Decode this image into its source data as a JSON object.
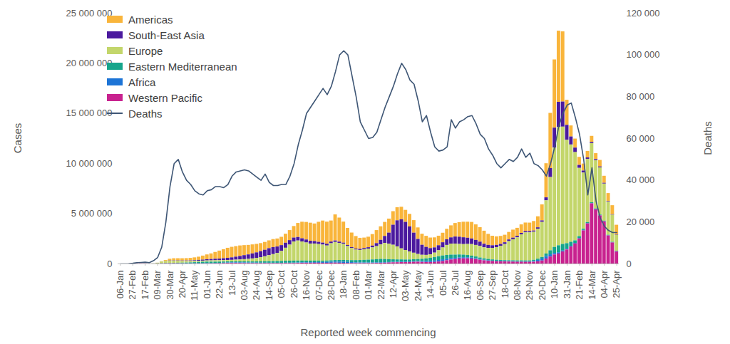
{
  "chart_data": {
    "type": "bar",
    "stacked": true,
    "legend": "top-left",
    "grid": false,
    "x_label": "Reported week commencing",
    "y_label": "Cases",
    "y2_label": "Deaths",
    "categories": [
      "06-Jan",
      null,
      null,
      "27-Feb",
      null,
      null,
      "17-Feb",
      null,
      null,
      "09-Mar",
      null,
      null,
      "30-Mar",
      null,
      null,
      "20-Apr",
      null,
      null,
      "11-May",
      null,
      null,
      "01-Jun",
      null,
      null,
      "22-Jun",
      null,
      null,
      "13-Jul",
      null,
      null,
      "03-Aug",
      null,
      null,
      "24-Aug",
      null,
      null,
      "14-Sep",
      null,
      null,
      "05-Oct",
      null,
      null,
      "26-Oct",
      null,
      null,
      "16-Nov",
      null,
      null,
      "07-Dec",
      null,
      null,
      "28-Dec",
      null,
      null,
      "18-Jan",
      null,
      null,
      "08-Feb",
      null,
      null,
      "01-Mar",
      null,
      null,
      "22-Mar",
      null,
      null,
      "12-Apr",
      null,
      null,
      "03-May",
      null,
      null,
      "24-May",
      null,
      null,
      "14-Jun",
      null,
      null,
      "05-Jul",
      null,
      null,
      "26-Jul",
      null,
      null,
      "16-Aug",
      null,
      null,
      "06-Sep",
      null,
      null,
      "27-Sep",
      null,
      null,
      "18-Oct",
      null,
      null,
      "08-Nov",
      null,
      null,
      "29-Nov",
      null,
      null,
      "20-Dec",
      null,
      null,
      "10-Jan",
      null,
      null,
      "31-Jan",
      null,
      null,
      "21-Feb",
      null,
      null,
      "14-Mar",
      null,
      null,
      "04-Apr",
      null,
      null,
      "25-Apr"
    ],
    "ylim": [
      0,
      25000000
    ],
    "yticks": [
      0,
      {
        "value": 5000000,
        "label": "5 000 000"
      },
      {
        "value": 10000000,
        "label": "10 000 000"
      },
      {
        "value": 15000000,
        "label": "15 000 000"
      },
      {
        "value": 20000000,
        "label": "20 000 000"
      },
      {
        "value": 25000000,
        "label": "25 000 000"
      }
    ],
    "y2lim": [
      0,
      120000
    ],
    "y2ticks": [
      0,
      {
        "value": 20000,
        "label": "20 000"
      },
      {
        "value": 40000,
        "label": "40 000"
      },
      {
        "value": 60000,
        "label": "60 000"
      },
      {
        "value": 80000,
        "label": "80 000"
      },
      {
        "value": 100000,
        "label": "100 000"
      },
      {
        "value": 120000,
        "label": "120 000"
      }
    ],
    "series": [
      {
        "name": "Americas",
        "type": "bar",
        "color": "#F9B53B",
        "values": [
          0,
          0,
          0,
          0,
          0,
          0,
          0,
          0,
          1000,
          5000,
          30000,
          90000,
          170000,
          210000,
          220000,
          220000,
          230000,
          250000,
          280000,
          320000,
          400000,
          480000,
          560000,
          680000,
          800000,
          900000,
          1000000,
          1050000,
          1050000,
          1050000,
          1000000,
          950000,
          900000,
          850000,
          800000,
          780000,
          780000,
          800000,
          800000,
          830000,
          900000,
          1000000,
          1150000,
          1400000,
          1650000,
          1750000,
          1800000,
          1750000,
          2000000,
          2200000,
          2200000,
          2100000,
          2600000,
          2400000,
          2100000,
          1700000,
          1450000,
          1250000,
          1100000,
          1050000,
          1050000,
          1150000,
          1300000,
          1350000,
          1400000,
          1400000,
          1350000,
          1300000,
          1250000,
          1200000,
          1250000,
          1250000,
          1150000,
          1100000,
          1100000,
          1050000,
          1000000,
          950000,
          950000,
          1050000,
          1200000,
          1350000,
          1450000,
          1550000,
          1600000,
          1650000,
          1550000,
          1450000,
          1300000,
          1100000,
          950000,
          850000,
          800000,
          750000,
          750000,
          800000,
          800000,
          850000,
          850000,
          850000,
          950000,
          1100000,
          1600000,
          3400000,
          5500000,
          6800000,
          7100000,
          7000000,
          2500000,
          1100000,
          900000,
          800000,
          700000,
          650000,
          600000,
          600000,
          650000,
          700000,
          800000,
          900000,
          950000
        ]
      },
      {
        "name": "South-East Asia",
        "type": "bar",
        "color": "#4B1A9E",
        "values": [
          0,
          0,
          0,
          0,
          0,
          0,
          0,
          0,
          0,
          2000,
          5000,
          10000,
          20000,
          25000,
          30000,
          40000,
          50000,
          60000,
          70000,
          85000,
          100000,
          120000,
          135000,
          150000,
          160000,
          190000,
          220000,
          250000,
          300000,
          350000,
          400000,
          450000,
          500000,
          550000,
          600000,
          650000,
          700000,
          700000,
          650000,
          580000,
          500000,
          450000,
          400000,
          350000,
          320000,
          300000,
          280000,
          250000,
          220000,
          200000,
          180000,
          170000,
          150000,
          130000,
          120000,
          110000,
          100000,
          100000,
          110000,
          120000,
          140000,
          180000,
          300000,
          450000,
          700000,
          1100000,
          2000000,
          2600000,
          2900000,
          2800000,
          2500000,
          2000000,
          1500000,
          1000000,
          800000,
          620000,
          520000,
          500000,
          520000,
          560000,
          620000,
          700000,
          720000,
          680000,
          620000,
          560000,
          500000,
          430000,
          360000,
          300000,
          260000,
          230000,
          200000,
          180000,
          170000,
          160000,
          150000,
          140000,
          130000,
          120000,
          120000,
          130000,
          150000,
          300000,
          900000,
          2000000,
          2500000,
          2500000,
          1500000,
          800000,
          450000,
          300000,
          200000,
          150000,
          120000,
          110000,
          100000,
          80000,
          60000,
          50000,
          50000
        ]
      },
      {
        "name": "Europe",
        "type": "bar",
        "color": "#C3D66B",
        "values": [
          0,
          0,
          0,
          0,
          0,
          0,
          0,
          1000,
          10000,
          60000,
          160000,
          200000,
          220000,
          220000,
          200000,
          180000,
          160000,
          140000,
          130000,
          120000,
          120000,
          120000,
          130000,
          140000,
          140000,
          140000,
          140000,
          150000,
          170000,
          190000,
          220000,
          250000,
          300000,
          350000,
          420000,
          500000,
          600000,
          700000,
          800000,
          1000000,
          1300000,
          1600000,
          1900000,
          2000000,
          1900000,
          1800000,
          1700000,
          1700000,
          1650000,
          1600000,
          1500000,
          1700000,
          1800000,
          1700000,
          1600000,
          1400000,
          1200000,
          1050000,
          1000000,
          1050000,
          1100000,
          1200000,
          1300000,
          1450000,
          1600000,
          1550000,
          1450000,
          1300000,
          1100000,
          950000,
          800000,
          650000,
          500000,
          400000,
          350000,
          350000,
          450000,
          600000,
          800000,
          1000000,
          1100000,
          1100000,
          1050000,
          1050000,
          1100000,
          1150000,
          1150000,
          1150000,
          1100000,
          1100000,
          1150000,
          1250000,
          1400000,
          1600000,
          1900000,
          2100000,
          2300000,
          2600000,
          2800000,
          2800000,
          2800000,
          3000000,
          3500000,
          5300000,
          7300000,
          9900000,
          11800000,
          11700000,
          10300000,
          9700000,
          8800000,
          6800000,
          5600000,
          6300000,
          5900000,
          4800000,
          4700000,
          3700000,
          3300000,
          2700000,
          1600000
        ]
      },
      {
        "name": "Eastern Mediterranean",
        "type": "bar",
        "color": "#16A58B",
        "values": [
          0,
          0,
          0,
          0,
          0,
          0,
          0,
          1000,
          3000,
          8000,
          20000,
          30000,
          35000,
          40000,
          50000,
          60000,
          75000,
          90000,
          110000,
          130000,
          140000,
          150000,
          140000,
          130000,
          120000,
          110000,
          105000,
          100000,
          95000,
          95000,
          100000,
          105000,
          110000,
          120000,
          130000,
          140000,
          150000,
          160000,
          170000,
          180000,
          190000,
          200000,
          200000,
          190000,
          180000,
          170000,
          160000,
          150000,
          140000,
          130000,
          130000,
          140000,
          150000,
          160000,
          170000,
          180000,
          200000,
          220000,
          240000,
          260000,
          280000,
          300000,
          320000,
          340000,
          320000,
          280000,
          250000,
          230000,
          220000,
          210000,
          200000,
          200000,
          210000,
          230000,
          260000,
          300000,
          340000,
          370000,
          380000,
          370000,
          350000,
          320000,
          290000,
          260000,
          230000,
          200000,
          180000,
          160000,
          140000,
          130000,
          120000,
          110000,
          100000,
          100000,
          100000,
          100000,
          100000,
          100000,
          100000,
          100000,
          110000,
          120000,
          150000,
          250000,
          400000,
          600000,
          700000,
          650000,
          550000,
          400000,
          250000,
          180000,
          120000,
          90000,
          70000,
          60000,
          50000,
          40000,
          35000,
          30000,
          25000
        ]
      },
      {
        "name": "Africa",
        "type": "bar",
        "color": "#1D74D6",
        "values": [
          0,
          0,
          0,
          0,
          0,
          0,
          0,
          0,
          0,
          1000,
          2000,
          3000,
          5000,
          6000,
          8000,
          10000,
          12000,
          14000,
          16000,
          18000,
          20000,
          25000,
          30000,
          35000,
          40000,
          47000,
          53000,
          60000,
          65000,
          68000,
          70000,
          63000,
          57000,
          50000,
          47000,
          43000,
          40000,
          38000,
          36000,
          35000,
          37000,
          38000,
          40000,
          43000,
          47000,
          50000,
          57000,
          63000,
          70000,
          80000,
          90000,
          100000,
          107000,
          113000,
          120000,
          107000,
          93000,
          80000,
          73000,
          67000,
          60000,
          57000,
          53000,
          50000,
          50000,
          50000,
          50000,
          50000,
          50000,
          50000,
          53000,
          57000,
          60000,
          80000,
          100000,
          120000,
          137000,
          153000,
          170000,
          153000,
          137000,
          120000,
          113000,
          107000,
          100000,
          87000,
          73000,
          60000,
          53000,
          47000,
          40000,
          37000,
          33000,
          30000,
          30000,
          30000,
          30000,
          33000,
          37000,
          40000,
          80000,
          140000,
          200000,
          250000,
          220000,
          150000,
          120000,
          100000,
          80000,
          70000,
          60000,
          55000,
          50000,
          40000,
          40000,
          35000,
          30000,
          30000,
          30000,
          35000,
          40000
        ]
      },
      {
        "name": "Western Pacific",
        "type": "bar",
        "color": "#C8228F",
        "values": [
          0,
          0,
          1000,
          15000,
          20000,
          20000,
          15000,
          5000,
          5000,
          8000,
          15000,
          20000,
          25000,
          25000,
          20000,
          15000,
          10000,
          8000,
          8000,
          10000,
          10000,
          12000,
          15000,
          20000,
          30000,
          40000,
          50000,
          55000,
          55000,
          50000,
          45000,
          40000,
          40000,
          40000,
          40000,
          40000,
          40000,
          40000,
          40000,
          40000,
          45000,
          45000,
          50000,
          60000,
          70000,
          75000,
          75000,
          80000,
          80000,
          75000,
          75000,
          80000,
          90000,
          80000,
          70000,
          55000,
          45000,
          40000,
          40000,
          40000,
          45000,
          50000,
          60000,
          70000,
          80000,
          100000,
          120000,
          130000,
          140000,
          140000,
          150000,
          170000,
          180000,
          160000,
          150000,
          150000,
          160000,
          200000,
          250000,
          330000,
          400000,
          450000,
          500000,
          520000,
          520000,
          500000,
          450000,
          380000,
          320000,
          280000,
          250000,
          230000,
          220000,
          210000,
          200000,
          190000,
          180000,
          180000,
          170000,
          170000,
          180000,
          220000,
          300000,
          500000,
          700000,
          900000,
          1000000,
          1200000,
          1400000,
          1700000,
          2000000,
          2500000,
          3300000,
          4000000,
          6000000,
          5400000,
          4800000,
          4200000,
          2800000,
          2100000,
          1200000
        ]
      },
      {
        "name": "Deaths",
        "type": "line",
        "axis": "y2",
        "color": "#3E5675",
        "values": [
          0,
          10,
          100,
          300,
          600,
          700,
          800,
          600,
          1500,
          3000,
          8000,
          20000,
          37000,
          48000,
          50000,
          44000,
          40000,
          38000,
          35000,
          33500,
          33000,
          35000,
          35500,
          37000,
          37000,
          36500,
          38000,
          42000,
          44000,
          44500,
          45000,
          44500,
          43000,
          41500,
          40000,
          43000,
          39000,
          37500,
          37500,
          38000,
          38000,
          42000,
          48000,
          57000,
          64000,
          72000,
          75000,
          78000,
          81000,
          84000,
          81000,
          85000,
          92000,
          100000,
          102000,
          100000,
          90000,
          80000,
          68000,
          64000,
          60000,
          60500,
          63000,
          69000,
          75000,
          80000,
          85000,
          91000,
          96000,
          93000,
          88000,
          86000,
          78000,
          68000,
          71000,
          63000,
          56000,
          54000,
          54500,
          56000,
          69000,
          65000,
          68000,
          69000,
          70500,
          71000,
          67000,
          62000,
          60000,
          55000,
          52000,
          48000,
          46000,
          48000,
          50000,
          49000,
          51000,
          55000,
          51000,
          53000,
          48000,
          47000,
          45000,
          42000,
          48000,
          56000,
          66000,
          72000,
          76000,
          77000,
          70000,
          62000,
          50000,
          33000,
          46000,
          30000,
          22000,
          18000,
          16000,
          15000,
          15000
        ]
      }
    ]
  }
}
